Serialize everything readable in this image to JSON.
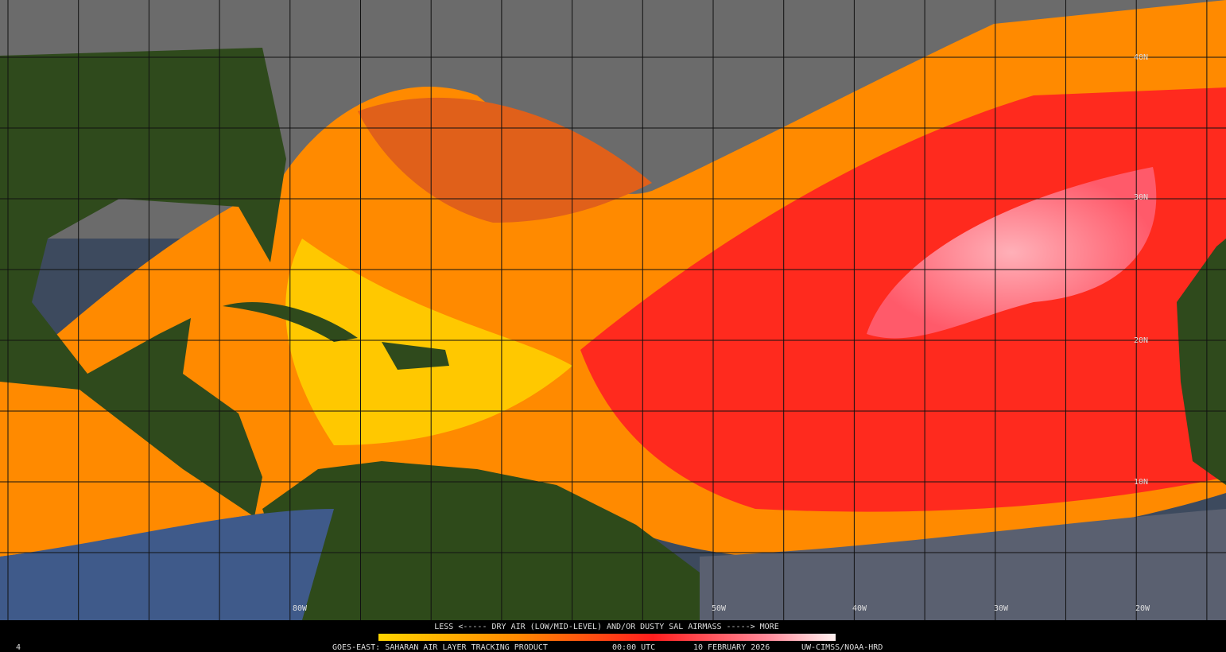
{
  "legend": {
    "caption": "LESS <----- DRY AIR (LOW/MID-LEVEL) AND/OR DUSTY SAL AIRMASS -----> MORE"
  },
  "footer": {
    "product": "GOES-EAST: SAHARAN AIR LAYER TRACKING PRODUCT",
    "time": "00:00 UTC",
    "date": "10 FEBRUARY 2026",
    "credit": "UW-CIMSS/NOAA-HRD",
    "corner": "4"
  },
  "grid": {
    "lat_labels": [
      "40N",
      "30N",
      "20N",
      "10N"
    ],
    "lon_labels": [
      "80W",
      "50W",
      "40W",
      "30W",
      "20W"
    ]
  }
}
